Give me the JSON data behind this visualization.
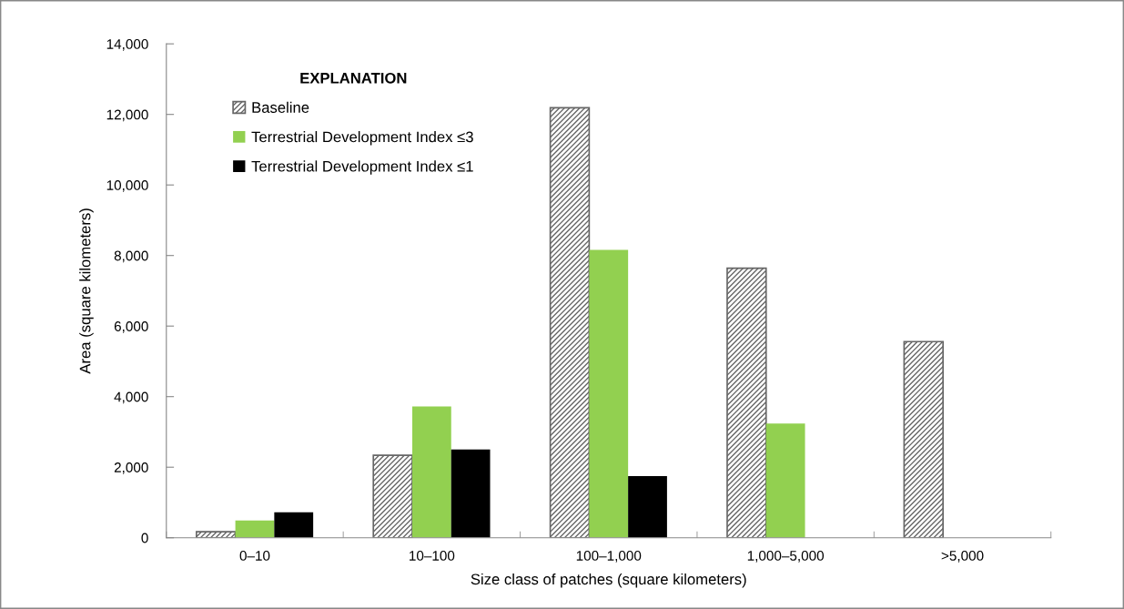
{
  "chart_data": {
    "type": "bar",
    "xlabel": "Size class of patches (square kilometers)",
    "ylabel": "Area (square kilometers)",
    "categories": [
      "0–10",
      "10–100",
      "100–1,000",
      "1,000–5,000",
      ">5,000"
    ],
    "series": [
      {
        "name": "Baseline",
        "color": "#666666",
        "values": [
          170,
          2340,
          12190,
          7640,
          5560
        ]
      },
      {
        "name": "Terrestrial Development Index ≤3",
        "color": "#92d050",
        "values": [
          490,
          3720,
          8160,
          3240,
          null
        ]
      },
      {
        "name": "Terrestrial Development Index ≤1",
        "color": "#000000",
        "values": [
          720,
          2500,
          1750,
          null,
          null
        ]
      }
    ],
    "ylim": [
      0,
      14000
    ],
    "yticks": [
      {
        "value": 0,
        "label": "0"
      },
      {
        "value": 2000,
        "label": "2,000"
      },
      {
        "value": 4000,
        "label": "4,000"
      },
      {
        "value": 6000,
        "label": "6,000"
      },
      {
        "value": 8000,
        "label": "8,000"
      },
      {
        "value": 10000,
        "label": "10,000"
      },
      {
        "value": 12000,
        "label": "12,000"
      },
      {
        "value": 14000,
        "label": "14,000"
      }
    ],
    "grid": false,
    "legend": "top left",
    "legend_title": "EXPLANATION"
  }
}
